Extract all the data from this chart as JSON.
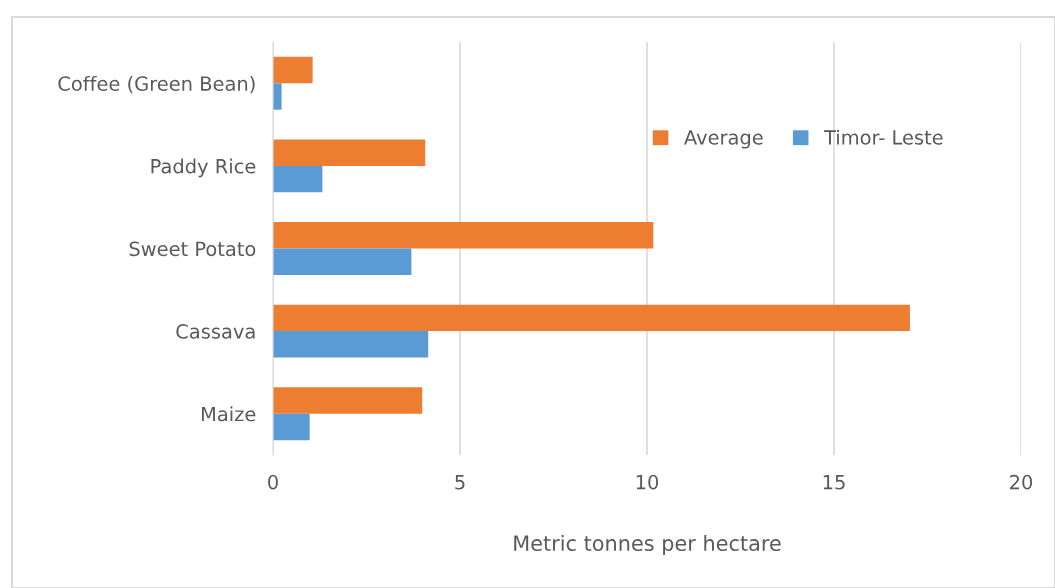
{
  "chart_data": {
    "type": "bar",
    "orientation": "horizontal",
    "xlabel": "Metric tonnes per hectare",
    "categories": [
      "Coffee (Green Bean)",
      "Paddy Rice",
      "Sweet Potato",
      "Cassava",
      "Maize"
    ],
    "series": [
      {
        "name": "Average",
        "color": "#ed7d31",
        "values": [
          1.06,
          4.07,
          10.17,
          17.03,
          3.99
        ]
      },
      {
        "name": "Timor- Leste",
        "color": "#5b9bd5",
        "values": [
          0.23,
          1.32,
          3.7,
          4.15,
          0.98
        ]
      }
    ],
    "xlim": [
      0,
      20
    ],
    "xticks": [
      0,
      5,
      10,
      15,
      20
    ],
    "grid": "x",
    "legend": "top right"
  }
}
